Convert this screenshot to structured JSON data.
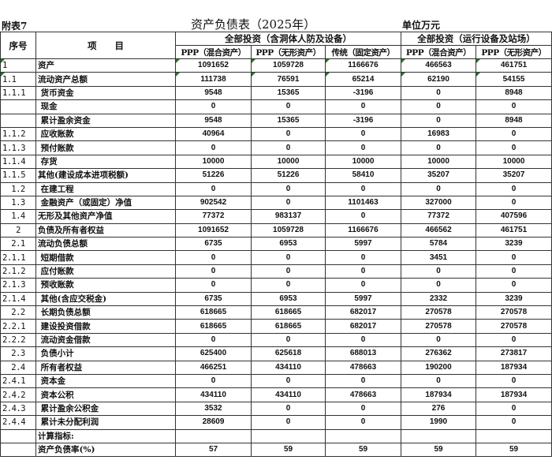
{
  "figure_label": "附表7",
  "title": "资产负债表（2025年）",
  "unit": "单位万元",
  "headers": {
    "seq": "序号",
    "item": "项　　目",
    "group1": "全部投资（含洞体人防及设备）",
    "group2": "全部投资（运行设备及站场）",
    "cols": [
      "PPP（混合资产）",
      "PPP（无形资产）",
      "传统（固定资产）",
      "PPP（混合资产）",
      "PPP（无形资产）"
    ]
  },
  "rows": [
    {
      "seq": "1",
      "item": "资产",
      "v": [
        "1091652",
        "1059728",
        "1166676",
        "466563",
        "461751"
      ]
    },
    {
      "seq": "1.1",
      "item": "流动资产总额",
      "v": [
        "111738",
        "76591",
        "65214",
        "62190",
        "54155"
      ]
    },
    {
      "seq": "1.1.1",
      "item": " 货币资金",
      "v": [
        "9548",
        "15365",
        "-3196",
        "0",
        "8948"
      ]
    },
    {
      "seq": "",
      "item": " 现金",
      "v": [
        "0",
        "0",
        "0",
        "0",
        "0"
      ]
    },
    {
      "seq": "",
      "item": " 累计盈余资金",
      "v": [
        "9548",
        "15365",
        "-3196",
        "0",
        "8948"
      ]
    },
    {
      "seq": "1.1.2",
      "item": " 应收账款",
      "v": [
        "40964",
        "0",
        "0",
        "16983",
        "0"
      ]
    },
    {
      "seq": "1.1.3",
      "item": " 预付账款",
      "v": [
        "0",
        "0",
        "0",
        "0",
        "0"
      ]
    },
    {
      "seq": "1.1.4",
      "item": " 存货",
      "v": [
        "10000",
        "10000",
        "10000",
        "10000",
        "10000"
      ]
    },
    {
      "seq": "1.1.5",
      "item": "其他(建设成本进项税额)",
      "v": [
        "51226",
        "51226",
        "58410",
        "35207",
        "35207"
      ]
    },
    {
      "seq": "1.2",
      "item": " 在建工程",
      "v": [
        "0",
        "0",
        "0",
        "0",
        "0"
      ]
    },
    {
      "seq": "1.3",
      "item": " 金融资产（或固定）净值",
      "v": [
        "902542",
        "0",
        "1101463",
        "327000",
        "0"
      ]
    },
    {
      "seq": "1.4",
      "item": "无形及其他资产净值",
      "v": [
        "77372",
        "983137",
        "0",
        "77372",
        "407596"
      ]
    },
    {
      "seq": "2",
      "item": "负债及所有者权益",
      "v": [
        "1091652",
        "1059728",
        "1166676",
        "466562",
        "461751"
      ]
    },
    {
      "seq": "2.1",
      "item": "流动负债总额",
      "v": [
        "6735",
        "6953",
        "5997",
        "5784",
        "3239"
      ]
    },
    {
      "seq": "2.1.1",
      "item": " 短期借款",
      "v": [
        "0",
        "0",
        "0",
        "3451",
        "0"
      ]
    },
    {
      "seq": "2.1.2",
      "item": " 应付账款",
      "v": [
        "0",
        "0",
        "0",
        "0",
        "0"
      ]
    },
    {
      "seq": "2.1.3",
      "item": " 预收账款",
      "v": [
        "0",
        "0",
        "0",
        "0",
        "0"
      ]
    },
    {
      "seq": "2.1.4",
      "item": " 其他(含应交税金)",
      "v": [
        "6735",
        "6953",
        "5997",
        "2332",
        "3239"
      ]
    },
    {
      "seq": "2.2",
      "item": " 长期负债总额",
      "v": [
        "618665",
        "618665",
        "682017",
        "270578",
        "270578"
      ]
    },
    {
      "seq": "2.2.1",
      "item": " 建设投资借款",
      "v": [
        "618665",
        "618665",
        "682017",
        "270578",
        "270578"
      ]
    },
    {
      "seq": "2.2.2",
      "item": " 流动资金借款",
      "v": [
        "0",
        "0",
        "0",
        "0",
        "0"
      ]
    },
    {
      "seq": "2.3",
      "item": " 负债小计",
      "v": [
        "625400",
        "625618",
        "688013",
        "276362",
        "273817"
      ]
    },
    {
      "seq": "2.4",
      "item": " 所有者权益",
      "v": [
        "466251",
        "434110",
        "478663",
        "190200",
        "187934"
      ]
    },
    {
      "seq": "2.4.1",
      "item": " 资本金",
      "v": [
        "0",
        "0",
        "0",
        "0",
        "0"
      ]
    },
    {
      "seq": "2.4.2",
      "item": " 资本公积",
      "v": [
        "434110",
        "434110",
        "478663",
        "187934",
        "187934"
      ]
    },
    {
      "seq": "2.4.3",
      "item": " 累计盈余公积金",
      "v": [
        "3532",
        "0",
        "0",
        "276",
        "0"
      ]
    },
    {
      "seq": "2.4.4",
      "item": " 累计未分配利润",
      "v": [
        "28609",
        "0",
        "0",
        "1990",
        "0"
      ]
    },
    {
      "seq": "",
      "item": "计算指标:",
      "v": [
        "",
        "",
        "",
        "",
        ""
      ]
    },
    {
      "seq": "",
      "item": "资产负债率(%)",
      "v": [
        "57",
        "59",
        "59",
        "59",
        "59"
      ]
    }
  ],
  "marker_color": "#1a7a2a"
}
